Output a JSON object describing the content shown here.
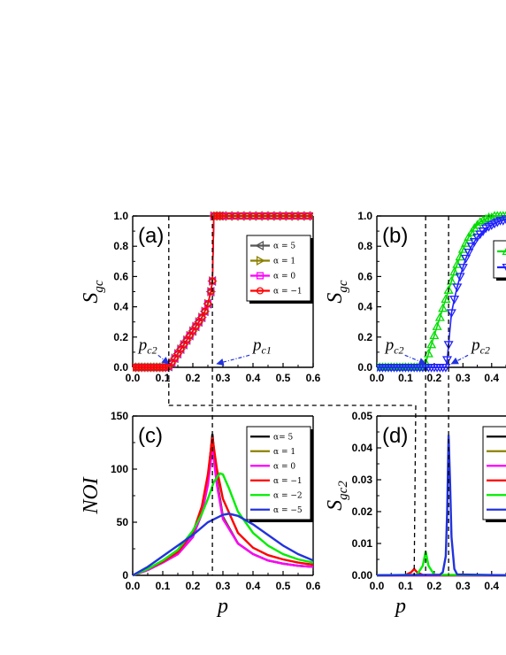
{
  "chart_data": [
    {
      "id": "a",
      "type": "line",
      "panel_label": "(a)",
      "ylabel": "S",
      "ylabel_sub": "gc",
      "xlim": [
        0,
        0.6
      ],
      "ylim": [
        0,
        1.0
      ],
      "xticks": [
        "0.0",
        "0.1",
        "0.2",
        "0.3",
        "0.4",
        "0.5",
        "0.6"
      ],
      "yticks": [
        "0.0",
        "0.2",
        "0.4",
        "0.6",
        "0.8",
        "1.0"
      ],
      "legend_position": "top-right",
      "series": [
        {
          "name": "α = 5",
          "color": "#555555",
          "marker": "triangle-left",
          "x": [
            0,
            0.01,
            0.02,
            0.03,
            0.04,
            0.05,
            0.06,
            0.07,
            0.08,
            0.09,
            0.1,
            0.11,
            0.12,
            0.13,
            0.14,
            0.15,
            0.16,
            0.17,
            0.18,
            0.19,
            0.2,
            0.21,
            0.22,
            0.23,
            0.24,
            0.25,
            0.26,
            0.265,
            0.27,
            0.28,
            0.29,
            0.3,
            0.32,
            0.34,
            0.36,
            0.38,
            0.4,
            0.42,
            0.44,
            0.46,
            0.48,
            0.5,
            0.52,
            0.54,
            0.56,
            0.58,
            0.6
          ],
          "y": [
            0,
            0,
            0,
            0,
            0,
            0,
            0,
            0,
            0,
            0,
            0,
            0,
            0.005,
            0.03,
            0.06,
            0.09,
            0.12,
            0.15,
            0.18,
            0.21,
            0.24,
            0.27,
            0.3,
            0.33,
            0.37,
            0.42,
            0.5,
            0.57,
            1,
            1,
            1,
            1,
            1,
            1,
            1,
            1,
            1,
            1,
            1,
            1,
            1,
            1,
            1,
            1,
            1,
            1,
            1
          ]
        },
        {
          "name": "α = 1",
          "color": "#8B8000",
          "marker": "triangle-right",
          "x": [
            0,
            0.01,
            0.02,
            0.03,
            0.04,
            0.05,
            0.06,
            0.07,
            0.08,
            0.09,
            0.1,
            0.11,
            0.12,
            0.13,
            0.14,
            0.15,
            0.16,
            0.17,
            0.18,
            0.19,
            0.2,
            0.21,
            0.22,
            0.23,
            0.24,
            0.25,
            0.26,
            0.265,
            0.27,
            0.28,
            0.29,
            0.3,
            0.32,
            0.34,
            0.36,
            0.38,
            0.4,
            0.42,
            0.44,
            0.46,
            0.48,
            0.5,
            0.52,
            0.54,
            0.56,
            0.58,
            0.6
          ],
          "y": [
            0,
            0,
            0,
            0,
            0,
            0,
            0,
            0,
            0,
            0,
            0,
            0,
            0.005,
            0.03,
            0.06,
            0.09,
            0.12,
            0.15,
            0.18,
            0.21,
            0.24,
            0.27,
            0.3,
            0.33,
            0.37,
            0.42,
            0.5,
            0.57,
            1,
            1,
            1,
            1,
            1,
            1,
            1,
            1,
            1,
            1,
            1,
            1,
            1,
            1,
            1,
            1,
            1,
            1,
            1
          ]
        },
        {
          "name": "α = 0",
          "color": "#FF00FF",
          "marker": "square",
          "x": [
            0,
            0.01,
            0.02,
            0.03,
            0.04,
            0.05,
            0.06,
            0.07,
            0.08,
            0.09,
            0.1,
            0.11,
            0.12,
            0.13,
            0.14,
            0.15,
            0.16,
            0.17,
            0.18,
            0.19,
            0.2,
            0.21,
            0.22,
            0.23,
            0.24,
            0.25,
            0.26,
            0.265,
            0.27,
            0.28,
            0.29,
            0.3,
            0.32,
            0.34,
            0.36,
            0.38,
            0.4,
            0.42,
            0.44,
            0.46,
            0.48,
            0.5,
            0.52,
            0.54,
            0.56,
            0.58,
            0.6
          ],
          "y": [
            0,
            0,
            0,
            0,
            0,
            0,
            0,
            0,
            0,
            0,
            0,
            0,
            0.005,
            0.03,
            0.06,
            0.09,
            0.12,
            0.15,
            0.18,
            0.21,
            0.24,
            0.27,
            0.3,
            0.33,
            0.37,
            0.42,
            0.5,
            0.57,
            1,
            1,
            1,
            1,
            1,
            1,
            1,
            1,
            1,
            1,
            1,
            1,
            1,
            1,
            1,
            1,
            1,
            1,
            1
          ]
        },
        {
          "name": "α = −1",
          "color": "#FF0000",
          "marker": "circle",
          "x": [
            0,
            0.01,
            0.02,
            0.03,
            0.04,
            0.05,
            0.06,
            0.07,
            0.08,
            0.09,
            0.1,
            0.11,
            0.12,
            0.13,
            0.14,
            0.15,
            0.16,
            0.17,
            0.18,
            0.19,
            0.2,
            0.21,
            0.22,
            0.23,
            0.24,
            0.25,
            0.26,
            0.265,
            0.27,
            0.28,
            0.29,
            0.3,
            0.32,
            0.34,
            0.36,
            0.38,
            0.4,
            0.42,
            0.44,
            0.46,
            0.48,
            0.5,
            0.52,
            0.54,
            0.56,
            0.58,
            0.6
          ],
          "y": [
            0,
            0,
            0,
            0,
            0,
            0,
            0,
            0,
            0,
            0,
            0,
            0,
            0.005,
            0.03,
            0.06,
            0.09,
            0.12,
            0.15,
            0.18,
            0.21,
            0.24,
            0.27,
            0.3,
            0.33,
            0.37,
            0.42,
            0.5,
            0.57,
            1,
            1,
            1,
            1,
            1,
            1,
            1,
            1,
            1,
            1,
            1,
            1,
            1,
            1,
            1,
            1,
            1,
            1,
            1
          ]
        }
      ],
      "annotations": [
        {
          "main": "p",
          "sub": "c2",
          "x": 0.02,
          "y": 0.08,
          "arrow_to": [
            0.12,
            0.0
          ]
        },
        {
          "main": "p",
          "sub": "c1",
          "x": 0.4,
          "y": 0.08,
          "arrow_to": [
            0.28,
            0.0
          ]
        }
      ]
    },
    {
      "id": "b",
      "type": "line",
      "panel_label": "(b)",
      "ylabel": "S",
      "ylabel_sub": "gc",
      "xlim": [
        0,
        0.45
      ],
      "ylim": [
        0,
        1.0
      ],
      "xticks": [
        "0.0",
        "0.1",
        "0.2",
        "0.3",
        "0.4"
      ],
      "yticks": [
        "0.0",
        "0.2",
        "0.4",
        "0.6",
        "0.8",
        "1.0"
      ],
      "legend_position": "top-right",
      "series": [
        {
          "name": "",
          "color": "#00DD00",
          "marker": "triangle-up",
          "x": [
            0,
            0.01,
            0.02,
            0.03,
            0.04,
            0.05,
            0.06,
            0.07,
            0.08,
            0.09,
            0.1,
            0.11,
            0.12,
            0.13,
            0.14,
            0.15,
            0.16,
            0.17,
            0.18,
            0.19,
            0.2,
            0.21,
            0.22,
            0.23,
            0.24,
            0.25,
            0.26,
            0.27,
            0.28,
            0.29,
            0.3,
            0.31,
            0.32,
            0.33,
            0.34,
            0.35,
            0.36,
            0.37,
            0.38,
            0.39,
            0.4,
            0.41,
            0.42,
            0.43,
            0.44,
            0.45
          ],
          "y": [
            0,
            0,
            0,
            0,
            0,
            0,
            0,
            0,
            0,
            0,
            0,
            0,
            0,
            0,
            0,
            0,
            0,
            0.03,
            0.09,
            0.15,
            0.21,
            0.27,
            0.33,
            0.39,
            0.45,
            0.51,
            0.57,
            0.63,
            0.68,
            0.73,
            0.78,
            0.82,
            0.86,
            0.89,
            0.92,
            0.94,
            0.96,
            0.97,
            0.98,
            0.99,
            0.99,
            1.0,
            1.0,
            1.0,
            1.0,
            1.0
          ]
        },
        {
          "name": "",
          "color": "#2222FF",
          "marker": "triangle-down",
          "x": [
            0,
            0.01,
            0.02,
            0.03,
            0.04,
            0.05,
            0.06,
            0.07,
            0.08,
            0.09,
            0.1,
            0.11,
            0.12,
            0.13,
            0.14,
            0.15,
            0.16,
            0.17,
            0.18,
            0.19,
            0.2,
            0.21,
            0.22,
            0.23,
            0.24,
            0.245,
            0.25,
            0.26,
            0.27,
            0.28,
            0.29,
            0.3,
            0.31,
            0.32,
            0.33,
            0.34,
            0.35,
            0.36,
            0.37,
            0.38,
            0.39,
            0.4,
            0.41,
            0.42,
            0.43,
            0.44,
            0.45
          ],
          "y": [
            0,
            0,
            0,
            0,
            0,
            0,
            0,
            0,
            0,
            0,
            0,
            0,
            0,
            0,
            0,
            0,
            0,
            0,
            0,
            0,
            0,
            0,
            0,
            0,
            0,
            0.05,
            0.15,
            0.36,
            0.45,
            0.53,
            0.6,
            0.66,
            0.72,
            0.76,
            0.8,
            0.83,
            0.86,
            0.88,
            0.9,
            0.92,
            0.93,
            0.94,
            0.95,
            0.96,
            0.97,
            0.97,
            0.98
          ]
        }
      ],
      "annotations": [
        {
          "main": "p",
          "sub": "c2",
          "x": 0.03,
          "y": 0.08,
          "arrow_to": [
            0.17,
            0.0
          ]
        },
        {
          "main": "p",
          "sub": "c2",
          "x": 0.33,
          "y": 0.08,
          "arrow_to": [
            0.26,
            0.0
          ]
        }
      ]
    },
    {
      "id": "c",
      "type": "line",
      "panel_label": "(c)",
      "ylabel": "NOI",
      "ylabel_sub": "",
      "xlim": [
        0,
        0.6
      ],
      "ylim": [
        0,
        150
      ],
      "xticks": [
        "0.0",
        "0.1",
        "0.2",
        "0.3",
        "0.4",
        "0.5",
        "0.6"
      ],
      "yticks": [
        "0",
        "50",
        "100",
        "150"
      ],
      "xlabel": "p",
      "legend_position": "top-right",
      "series": [
        {
          "name": "α= 5",
          "color": "#000000",
          "x": [
            0,
            0.05,
            0.1,
            0.15,
            0.2,
            0.23,
            0.25,
            0.265,
            0.28,
            0.3,
            0.35,
            0.4,
            0.45,
            0.5,
            0.55,
            0.6
          ],
          "y": [
            0,
            5,
            12,
            20,
            36,
            60,
            90,
            133,
            90,
            55,
            30,
            20,
            14,
            11,
            9,
            8
          ]
        },
        {
          "name": "α = 1",
          "color": "#8B8000",
          "x": [
            0,
            0.05,
            0.1,
            0.15,
            0.2,
            0.23,
            0.25,
            0.265,
            0.28,
            0.3,
            0.35,
            0.4,
            0.45,
            0.5,
            0.55,
            0.6
          ],
          "y": [
            0,
            5,
            12,
            20,
            36,
            60,
            88,
            128,
            88,
            54,
            30,
            20,
            14,
            11,
            9,
            8
          ]
        },
        {
          "name": "α = 0",
          "color": "#FF00FF",
          "x": [
            0,
            0.05,
            0.1,
            0.15,
            0.2,
            0.23,
            0.25,
            0.265,
            0.28,
            0.3,
            0.35,
            0.4,
            0.45,
            0.5,
            0.55,
            0.6
          ],
          "y": [
            0,
            5,
            12,
            20,
            36,
            58,
            85,
            120,
            85,
            53,
            30,
            20,
            14,
            11,
            9,
            8
          ]
        },
        {
          "name": "α = −1",
          "color": "#FF0000",
          "x": [
            0,
            0.05,
            0.1,
            0.15,
            0.2,
            0.23,
            0.25,
            0.265,
            0.28,
            0.3,
            0.35,
            0.4,
            0.45,
            0.5,
            0.55,
            0.6
          ],
          "y": [
            0,
            6,
            13,
            22,
            40,
            65,
            95,
            130,
            100,
            72,
            40,
            26,
            19,
            15,
            12,
            10
          ]
        },
        {
          "name": "α = −2",
          "color": "#00EE00",
          "x": [
            0,
            0.05,
            0.1,
            0.15,
            0.2,
            0.23,
            0.25,
            0.27,
            0.29,
            0.3,
            0.32,
            0.35,
            0.4,
            0.45,
            0.5,
            0.55,
            0.6
          ],
          "y": [
            0,
            6,
            14,
            24,
            42,
            58,
            72,
            88,
            96,
            95,
            82,
            60,
            40,
            28,
            20,
            15,
            12
          ]
        },
        {
          "name": "α = −5",
          "color": "#2233DD",
          "x": [
            0,
            0.05,
            0.1,
            0.15,
            0.2,
            0.25,
            0.3,
            0.32,
            0.35,
            0.4,
            0.45,
            0.5,
            0.55,
            0.6
          ],
          "y": [
            0,
            8,
            18,
            28,
            38,
            50,
            57,
            58,
            56,
            48,
            38,
            28,
            20,
            14
          ]
        }
      ]
    },
    {
      "id": "d",
      "type": "line",
      "panel_label": "(d)",
      "ylabel": "S",
      "ylabel_sub": "gc2",
      "xlim": [
        0,
        0.45
      ],
      "ylim": [
        0,
        0.05
      ],
      "xticks": [
        "0.0",
        "0.1",
        "0.2",
        "0.3",
        "0.4"
      ],
      "yticks": [
        "0.00",
        "0.01",
        "0.02",
        "0.03",
        "0.04",
        "0.05"
      ],
      "xlabel": "p",
      "legend_position": "top-right",
      "series": [
        {
          "name": "",
          "color": "#000000",
          "x": [
            0,
            0.45
          ],
          "y": [
            0,
            0
          ]
        },
        {
          "name": "",
          "color": "#8B8000",
          "x": [
            0,
            0.45
          ],
          "y": [
            0,
            0
          ]
        },
        {
          "name": "",
          "color": "#FF00FF",
          "x": [
            0,
            0.45
          ],
          "y": [
            0,
            0
          ]
        },
        {
          "name": "",
          "color": "#FF0000",
          "x": [
            0,
            0.1,
            0.12,
            0.13,
            0.14,
            0.16,
            0.45
          ],
          "y": [
            0,
            0.0001,
            0.001,
            0.002,
            0.001,
            0.0001,
            0
          ]
        },
        {
          "name": "",
          "color": "#00EE00",
          "x": [
            0,
            0.14,
            0.16,
            0.17,
            0.18,
            0.2,
            0.45
          ],
          "y": [
            0,
            0.0002,
            0.003,
            0.0075,
            0.003,
            0.0002,
            0
          ]
        },
        {
          "name": "",
          "color": "#2233DD",
          "x": [
            0,
            0.22,
            0.23,
            0.24,
            0.245,
            0.25,
            0.255,
            0.26,
            0.27,
            0.28,
            0.45
          ],
          "y": [
            0,
            0.0002,
            0.001,
            0.006,
            0.02,
            0.044,
            0.03,
            0.012,
            0.002,
            0.0003,
            0
          ]
        }
      ]
    }
  ],
  "guide_lines": {
    "p_c2_ab_c": 0.12,
    "p_c1_a_c": 0.265,
    "b_left": 0.17,
    "b_right": 0.25,
    "d_red": 0.13,
    "d_green": 0.17,
    "d_blue": 0.25
  },
  "colors": {
    "axis": "#000000",
    "dash": "#000000",
    "arrow": "#2233DD"
  }
}
